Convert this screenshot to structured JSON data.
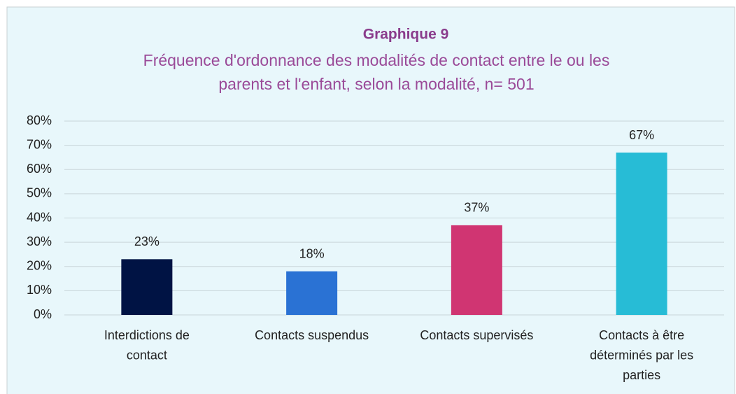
{
  "chart_data": {
    "type": "bar",
    "title": "Graphique 9",
    "subtitle": "Fréquence d'ordonnance des modalités de contact entre le ou les parents et l'enfant, selon la modalité, n= 501",
    "categories": [
      "Interdictions de contact",
      "Contacts suspendus",
      "Contacts supervisés",
      "Contacts à être déterminés par les parties"
    ],
    "values": [
      23,
      18,
      37,
      67
    ],
    "value_labels": [
      "23%",
      "18%",
      "37%",
      "67%"
    ],
    "colors": [
      "#001344",
      "#2a72d4",
      "#d03572",
      "#27bcd6"
    ],
    "ylim": [
      0,
      80
    ],
    "yticks": [
      {
        "value": 0,
        "label": "0%"
      },
      {
        "value": 10,
        "label": "10%"
      },
      {
        "value": 20,
        "label": "20%"
      },
      {
        "value": 30,
        "label": "30%"
      },
      {
        "value": 40,
        "label": "40%"
      },
      {
        "value": 50,
        "label": "50%"
      },
      {
        "value": 60,
        "label": "60%"
      },
      {
        "value": 70,
        "label": "70%"
      },
      {
        "value": 80,
        "label": "80%"
      }
    ],
    "grid": true
  }
}
